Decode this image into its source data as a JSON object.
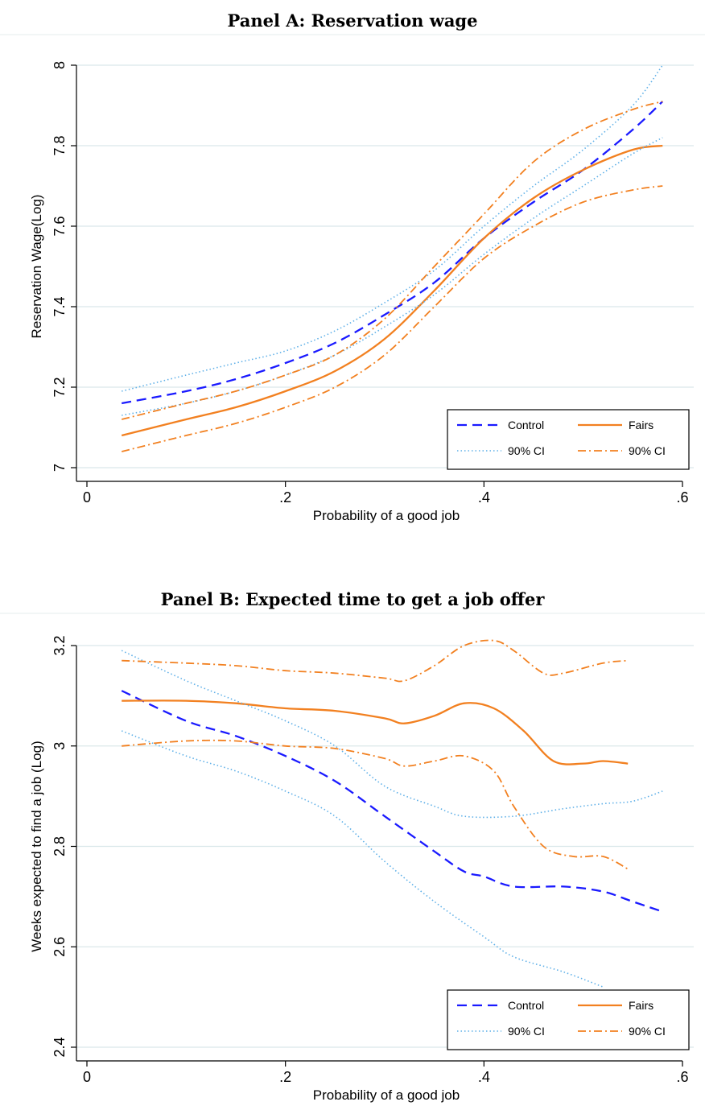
{
  "colors": {
    "control": "#1a1aff",
    "control_ci": "#5fb0e8",
    "fairs": "#f28020",
    "fairs_ci": "#f28020",
    "grid": "#dbe8ea"
  },
  "chart_data": [
    {
      "type": "line",
      "title": "Panel A: Reservation wage",
      "xlabel": "Probability of a good job",
      "ylabel": "Reservation Wage(Log)",
      "xlim": [
        0,
        0.6
      ],
      "ylim": [
        7,
        8
      ],
      "xticks": [
        0,
        0.2,
        0.4,
        0.6
      ],
      "xtick_labels": [
        "0",
        ".2",
        ".4",
        ".6"
      ],
      "yticks": [
        7,
        7.2,
        7.4,
        7.6,
        7.8,
        8
      ],
      "ytick_labels": [
        "7",
        "7.2",
        "7.4",
        "7.6",
        "7.8",
        "8"
      ],
      "grid": true,
      "legend_position": "bottom-right",
      "legend": [
        "Control",
        "Fairs",
        "90% CI",
        "90% CI"
      ],
      "series": [
        {
          "name": "Control",
          "style": "control",
          "points": [
            [
              0.035,
              7.16
            ],
            [
              0.1,
              7.19
            ],
            [
              0.15,
              7.22
            ],
            [
              0.2,
              7.26
            ],
            [
              0.25,
              7.31
            ],
            [
              0.3,
              7.38
            ],
            [
              0.35,
              7.46
            ],
            [
              0.4,
              7.57
            ],
            [
              0.45,
              7.66
            ],
            [
              0.5,
              7.74
            ],
            [
              0.55,
              7.84
            ],
            [
              0.58,
              7.91
            ]
          ]
        },
        {
          "name": "Fairs",
          "style": "fairs",
          "points": [
            [
              0.035,
              7.08
            ],
            [
              0.1,
              7.12
            ],
            [
              0.15,
              7.15
            ],
            [
              0.2,
              7.19
            ],
            [
              0.25,
              7.24
            ],
            [
              0.3,
              7.32
            ],
            [
              0.35,
              7.44
            ],
            [
              0.4,
              7.57
            ],
            [
              0.45,
              7.67
            ],
            [
              0.5,
              7.74
            ],
            [
              0.55,
              7.79
            ],
            [
              0.58,
              7.8
            ]
          ]
        },
        {
          "name": "90% CI",
          "style": "control_ci",
          "points": [
            [
              0.035,
              7.19
            ],
            [
              0.1,
              7.23
            ],
            [
              0.15,
              7.26
            ],
            [
              0.2,
              7.29
            ],
            [
              0.25,
              7.34
            ],
            [
              0.3,
              7.41
            ],
            [
              0.35,
              7.49
            ],
            [
              0.4,
              7.6
            ],
            [
              0.45,
              7.7
            ],
            [
              0.5,
              7.79
            ],
            [
              0.55,
              7.9
            ],
            [
              0.58,
              8.0
            ]
          ]
        },
        {
          "name": "90% CI",
          "style": "control_ci",
          "points": [
            [
              0.035,
              7.13
            ],
            [
              0.1,
              7.16
            ],
            [
              0.15,
              7.19
            ],
            [
              0.2,
              7.23
            ],
            [
              0.25,
              7.28
            ],
            [
              0.3,
              7.35
            ],
            [
              0.35,
              7.43
            ],
            [
              0.4,
              7.53
            ],
            [
              0.45,
              7.62
            ],
            [
              0.5,
              7.7
            ],
            [
              0.55,
              7.78
            ],
            [
              0.58,
              7.82
            ]
          ]
        },
        {
          "name": "90% CI",
          "style": "fairs_ci",
          "points": [
            [
              0.035,
              7.12
            ],
            [
              0.1,
              7.16
            ],
            [
              0.15,
              7.19
            ],
            [
              0.2,
              7.23
            ],
            [
              0.25,
              7.28
            ],
            [
              0.3,
              7.37
            ],
            [
              0.35,
              7.5
            ],
            [
              0.4,
              7.63
            ],
            [
              0.45,
              7.76
            ],
            [
              0.5,
              7.84
            ],
            [
              0.55,
              7.89
            ],
            [
              0.58,
              7.91
            ]
          ]
        },
        {
          "name": "90% CI",
          "style": "fairs_ci",
          "points": [
            [
              0.035,
              7.04
            ],
            [
              0.1,
              7.08
            ],
            [
              0.15,
              7.11
            ],
            [
              0.2,
              7.15
            ],
            [
              0.25,
              7.2
            ],
            [
              0.3,
              7.28
            ],
            [
              0.35,
              7.4
            ],
            [
              0.4,
              7.52
            ],
            [
              0.45,
              7.6
            ],
            [
              0.5,
              7.66
            ],
            [
              0.55,
              7.69
            ],
            [
              0.58,
              7.7
            ]
          ]
        }
      ]
    },
    {
      "type": "line",
      "title": "Panel B: Expected time to get a job offer",
      "xlabel": "Probability of a good job",
      "ylabel": "Weeks expected to find a job (Log)",
      "xlim": [
        0,
        0.6
      ],
      "ylim": [
        2.4,
        3.2
      ],
      "xticks": [
        0,
        0.2,
        0.4,
        0.6
      ],
      "xtick_labels": [
        "0",
        ".2",
        ".4",
        ".6"
      ],
      "yticks": [
        2.4,
        2.6,
        2.8,
        3,
        3.2
      ],
      "ytick_labels": [
        "2.4",
        "2.6",
        "2.8",
        "3",
        "3.2"
      ],
      "grid": true,
      "legend_position": "bottom-right",
      "legend": [
        "Control",
        "Fairs",
        "90% CI",
        "90% CI"
      ],
      "series": [
        {
          "name": "Control",
          "style": "control",
          "points": [
            [
              0.035,
              3.11
            ],
            [
              0.1,
              3.05
            ],
            [
              0.15,
              3.02
            ],
            [
              0.2,
              2.98
            ],
            [
              0.25,
              2.93
            ],
            [
              0.3,
              2.86
            ],
            [
              0.35,
              2.79
            ],
            [
              0.38,
              2.75
            ],
            [
              0.4,
              2.74
            ],
            [
              0.43,
              2.72
            ],
            [
              0.48,
              2.72
            ],
            [
              0.52,
              2.71
            ],
            [
              0.55,
              2.69
            ],
            [
              0.58,
              2.67
            ]
          ]
        },
        {
          "name": "Fairs",
          "style": "fairs",
          "points": [
            [
              0.035,
              3.09
            ],
            [
              0.1,
              3.09
            ],
            [
              0.15,
              3.085
            ],
            [
              0.2,
              3.075
            ],
            [
              0.25,
              3.07
            ],
            [
              0.3,
              3.055
            ],
            [
              0.32,
              3.045
            ],
            [
              0.35,
              3.06
            ],
            [
              0.38,
              3.085
            ],
            [
              0.41,
              3.075
            ],
            [
              0.44,
              3.03
            ],
            [
              0.47,
              2.97
            ],
            [
              0.5,
              2.965
            ],
            [
              0.52,
              2.97
            ],
            [
              0.545,
              2.965
            ]
          ]
        },
        {
          "name": "90% CI",
          "style": "control_ci",
          "points": [
            [
              0.035,
              3.19
            ],
            [
              0.1,
              3.13
            ],
            [
              0.15,
              3.09
            ],
            [
              0.2,
              3.05
            ],
            [
              0.25,
              3.0
            ],
            [
              0.3,
              2.92
            ],
            [
              0.35,
              2.88
            ],
            [
              0.38,
              2.86
            ],
            [
              0.43,
              2.86
            ],
            [
              0.48,
              2.875
            ],
            [
              0.52,
              2.885
            ],
            [
              0.55,
              2.89
            ],
            [
              0.58,
              2.91
            ]
          ]
        },
        {
          "name": "90% CI",
          "style": "control_ci",
          "points": [
            [
              0.035,
              3.03
            ],
            [
              0.1,
              2.98
            ],
            [
              0.15,
              2.95
            ],
            [
              0.2,
              2.91
            ],
            [
              0.25,
              2.86
            ],
            [
              0.3,
              2.77
            ],
            [
              0.35,
              2.69
            ],
            [
              0.4,
              2.62
            ],
            [
              0.43,
              2.58
            ],
            [
              0.48,
              2.55
            ],
            [
              0.52,
              2.52
            ]
          ]
        },
        {
          "name": "90% CI",
          "style": "fairs_ci",
          "points": [
            [
              0.035,
              3.17
            ],
            [
              0.1,
              3.165
            ],
            [
              0.15,
              3.16
            ],
            [
              0.2,
              3.15
            ],
            [
              0.25,
              3.145
            ],
            [
              0.3,
              3.135
            ],
            [
              0.32,
              3.13
            ],
            [
              0.35,
              3.16
            ],
            [
              0.38,
              3.2
            ],
            [
              0.41,
              3.21
            ],
            [
              0.43,
              3.19
            ],
            [
              0.46,
              3.145
            ],
            [
              0.48,
              3.145
            ],
            [
              0.52,
              3.165
            ],
            [
              0.545,
              3.17
            ]
          ]
        },
        {
          "name": "90% CI",
          "style": "fairs_ci",
          "points": [
            [
              0.035,
              3.0
            ],
            [
              0.1,
              3.01
            ],
            [
              0.15,
              3.01
            ],
            [
              0.2,
              3.0
            ],
            [
              0.25,
              2.995
            ],
            [
              0.3,
              2.975
            ],
            [
              0.32,
              2.96
            ],
            [
              0.35,
              2.97
            ],
            [
              0.38,
              2.98
            ],
            [
              0.41,
              2.95
            ],
            [
              0.43,
              2.88
            ],
            [
              0.46,
              2.8
            ],
            [
              0.49,
              2.78
            ],
            [
              0.52,
              2.78
            ],
            [
              0.545,
              2.755
            ]
          ]
        }
      ]
    }
  ]
}
